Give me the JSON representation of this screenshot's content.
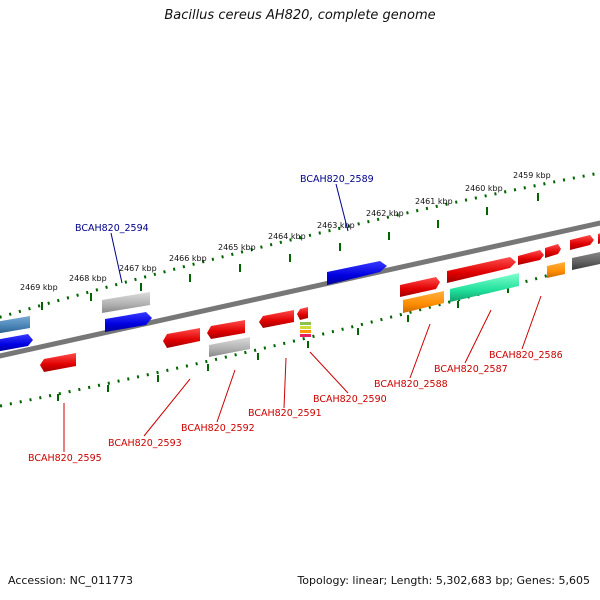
{
  "title": "Bacillus cereus AH820, complete genome",
  "footer": {
    "accession": "Accession: NC_011773",
    "summary": "Topology: linear; Length: 5,302,683 bp; Genes: 5,605"
  },
  "scale_ticks": [
    "2469 kbp",
    "2468 kbp",
    "2467 kbp",
    "2466 kbp",
    "2465 kbp",
    "2464 kbp",
    "2463 kbp",
    "2462 kbp",
    "2461 kbp",
    "2460 kbp",
    "2459 kbp"
  ],
  "top_labels": [
    "BCAH820_2594",
    "BCAH820_2589"
  ],
  "bottom_labels": [
    "BCAH820_2595",
    "BCAH820_2593",
    "BCAH820_2592",
    "BCAH820_2591",
    "BCAH820_2590",
    "BCAH820_2588",
    "BCAH820_2587",
    "BCAH820_2586"
  ],
  "colors": {
    "top_label": "#00008b",
    "bottom_label": "#cc0000",
    "backbone": "#777777",
    "ruler": "#006400"
  }
}
